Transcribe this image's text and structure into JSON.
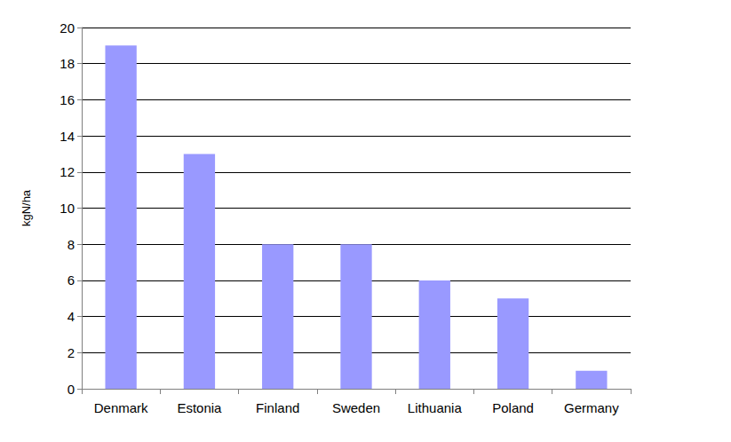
{
  "chart_data": {
    "type": "bar",
    "ylabel": "kgN/ha",
    "categories": [
      "Denmark",
      "Estonia",
      "Finland",
      "Sweden",
      "Lithuania",
      "Poland",
      "Germany"
    ],
    "values": [
      19,
      13,
      8,
      8,
      6,
      5,
      1
    ],
    "color": "#9999ff",
    "ylim": [
      0,
      20
    ],
    "yticks": [
      0,
      2,
      4,
      6,
      8,
      10,
      12,
      14,
      16,
      18,
      20
    ],
    "grid": true
  }
}
